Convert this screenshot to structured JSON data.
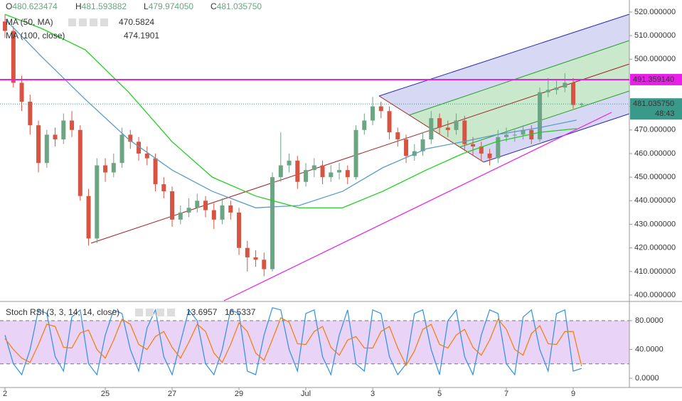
{
  "chart_data": {
    "type": "candlestick",
    "ohlc_prefixes": [
      "O",
      "H",
      "L",
      "C"
    ],
    "last_labels": {
      "open": "480.623474",
      "high": "481.593882",
      "low": "479.974050",
      "close": "481.035750"
    },
    "countdown": "48:43",
    "up_color": "#6ba583",
    "down_color": "#d75442",
    "x": [
      0,
      0.25,
      0.5,
      0.75,
      1,
      1.25,
      1.5,
      1.75,
      2,
      2.25,
      2.5,
      2.75,
      3,
      3.25,
      3.5,
      3.75,
      4,
      4.25,
      4.5,
      4.75,
      5,
      5.25,
      5.5,
      5.75,
      6,
      6.25,
      6.5,
      6.75,
      7,
      7.25,
      7.5,
      7.75,
      8,
      8.25,
      8.5,
      8.75,
      9,
      9.25,
      9.5,
      9.75,
      10,
      10.25,
      10.5,
      10.75,
      11,
      11.25,
      11.5,
      11.75,
      12,
      12.25,
      12.5,
      12.75,
      13,
      13.25,
      13.5,
      13.75,
      14,
      14.25,
      14.5,
      14.75,
      15,
      15.25,
      15.5,
      15.75,
      16,
      16.25,
      16.5,
      16.75,
      17,
      17.25
    ],
    "open": [
      516,
      512,
      490,
      482,
      472,
      456,
      468,
      466,
      474,
      470,
      442,
      424,
      455,
      452,
      456,
      468,
      465,
      460,
      458,
      447,
      444,
      432,
      435,
      437,
      440,
      436,
      432,
      438,
      435,
      420,
      416,
      415,
      411,
      450,
      455,
      457,
      448,
      453,
      455,
      450,
      452,
      453,
      450,
      470,
      474,
      480,
      478,
      469,
      466,
      459,
      461,
      466,
      475,
      471,
      470,
      474,
      464,
      463,
      460,
      458,
      467,
      468,
      468,
      470,
      466,
      486,
      487,
      488,
      490,
      480.623474
    ],
    "high": [
      519,
      514,
      493,
      485,
      474,
      470,
      471,
      477,
      478,
      472,
      445,
      458,
      458,
      460,
      471,
      470,
      467,
      463,
      460,
      450,
      446,
      438,
      441,
      443,
      442,
      439,
      441,
      440,
      437,
      423,
      419,
      418,
      452,
      469,
      460,
      459,
      456,
      458,
      457,
      455,
      456,
      455,
      472,
      477,
      484,
      482,
      480,
      471,
      468,
      464,
      469,
      478,
      477,
      474,
      477,
      476,
      467,
      465,
      462,
      470,
      471,
      470,
      472,
      472,
      488,
      492,
      491,
      494,
      492,
      481.593882
    ],
    "low": [
      509,
      488,
      478,
      468,
      452,
      454,
      463,
      464,
      467,
      440,
      421,
      422,
      448,
      450,
      454,
      462,
      457,
      455,
      444,
      441,
      429,
      430,
      433,
      435,
      433,
      428,
      430,
      432,
      417,
      410,
      412,
      408,
      410,
      448,
      452,
      445,
      446,
      450,
      447,
      448,
      449,
      447,
      449,
      468,
      472,
      475,
      466,
      463,
      456,
      457,
      459,
      464,
      468,
      467,
      468,
      461,
      459,
      457,
      455,
      456,
      465,
      465,
      466,
      464,
      465,
      484,
      485,
      486,
      479,
      479.97405
    ],
    "close": [
      512,
      490,
      482,
      472,
      456,
      468,
      466,
      474,
      470,
      442,
      424,
      455,
      452,
      456,
      468,
      465,
      460,
      458,
      447,
      444,
      432,
      435,
      437,
      440,
      436,
      432,
      438,
      435,
      420,
      416,
      415,
      411,
      450,
      455,
      457,
      448,
      453,
      455,
      450,
      452,
      453,
      450,
      470,
      474,
      480,
      478,
      469,
      466,
      459,
      461,
      466,
      475,
      471,
      470,
      474,
      464,
      463,
      460,
      458,
      467,
      468,
      468,
      470,
      466,
      486,
      487,
      488,
      490,
      480.623474,
      481.03575
    ],
    "ylim": [
      397.6,
      525.1
    ],
    "xlim": [
      -0.15,
      18.68
    ],
    "yticks": [
      {
        "value": 400,
        "label": "400.000000"
      },
      {
        "value": 410,
        "label": "410.000000"
      },
      {
        "value": 420,
        "label": "420.000000"
      },
      {
        "value": 430,
        "label": "430.000000"
      },
      {
        "value": 440,
        "label": "440.000000"
      },
      {
        "value": 450,
        "label": "450.000000"
      },
      {
        "value": 460,
        "label": "460.000000"
      },
      {
        "value": 470,
        "label": "470.000000"
      },
      {
        "value": 480,
        "label": "480.000000"
      },
      {
        "value": 490,
        "label": "490.000000"
      },
      {
        "value": 500,
        "label": "500.000000"
      },
      {
        "value": 510,
        "label": "510.000000"
      },
      {
        "value": 520,
        "label": "520.000000"
      }
    ],
    "xticks": [
      {
        "value": 0,
        "label": "2"
      },
      {
        "value": 3,
        "label": "25"
      },
      {
        "value": 5,
        "label": "27"
      },
      {
        "value": 7,
        "label": "29"
      },
      {
        "value": 9,
        "label": "Jul"
      },
      {
        "value": 11,
        "label": "3"
      },
      {
        "value": 13,
        "label": "5"
      },
      {
        "value": 15,
        "label": "7"
      },
      {
        "value": 17,
        "label": "9"
      }
    ],
    "hline": {
      "value": 491.35914,
      "label": "491.359140",
      "color": "#e91ee9"
    },
    "indicators": [
      {
        "name": "MA (50, MA)",
        "color": "#20d020",
        "x": [
          0,
          1.1,
          2.4,
          3.7,
          5,
          6.2,
          7.5,
          8.8,
          10.1,
          11.3,
          12.6,
          13.7,
          14.7,
          16,
          17.1
        ],
        "values": [
          519,
          513,
          504,
          486,
          465,
          450,
          442,
          437,
          437,
          444,
          453,
          460,
          465,
          469,
          470.5824
        ]
      },
      {
        "name": "MA (100, close)",
        "color": "#5b9cc6",
        "x": [
          0,
          1.1,
          2.4,
          3.7,
          5,
          6.2,
          7.5,
          8.8,
          10.1,
          11.3,
          12.6,
          13.7,
          14.7,
          16,
          17.1
        ],
        "values": [
          517,
          501,
          483,
          466,
          453,
          444,
          437,
          438,
          444,
          454,
          462,
          465,
          468,
          471,
          474.1901
        ]
      }
    ],
    "stoch": {
      "name": "Stoch RSI (3, 3, 14, 14, close)",
      "ylim": [
        -12.8,
        105.7
      ],
      "yticks": [
        {
          "value": 0,
          "label": "0.0000"
        },
        {
          "value": 40,
          "label": "40.0000"
        },
        {
          "value": 80,
          "label": "80.0000"
        }
      ],
      "bands": [
        20,
        80
      ],
      "band_color": "#e3c8f5",
      "series": [
        {
          "color": "#2f8fe8",
          "values": [
            60,
            20,
            5,
            40,
            95,
            90,
            30,
            10,
            85,
            95,
            20,
            5,
            60,
            95,
            90,
            40,
            10,
            70,
            95,
            30,
            5,
            50,
            95,
            80,
            20,
            5,
            40,
            95,
            90,
            10,
            5,
            60,
            98,
            95,
            40,
            10,
            90,
            95,
            30,
            5,
            60,
            95,
            20,
            10,
            95,
            90,
            30,
            5,
            20,
            90,
            95,
            40,
            5,
            80,
            95,
            30,
            5,
            60,
            95,
            90,
            20,
            5,
            85,
            95,
            40,
            10,
            90,
            95,
            10,
            13.6957
          ]
        },
        {
          "color": "#f57c00",
          "values": [
            55,
            40,
            28,
            22,
            47,
            75,
            72,
            43,
            42,
            63,
            67,
            40,
            28,
            53,
            82,
            75,
            47,
            40,
            58,
            65,
            43,
            28,
            50,
            75,
            65,
            35,
            22,
            47,
            77,
            65,
            35,
            25,
            54,
            84,
            78,
            48,
            47,
            65,
            72,
            43,
            32,
            53,
            58,
            42,
            42,
            65,
            72,
            42,
            18,
            38,
            68,
            75,
            47,
            42,
            60,
            68,
            43,
            32,
            53,
            82,
            68,
            40,
            32,
            62,
            73,
            48,
            47,
            65,
            65,
            16.5337
          ]
        }
      ]
    }
  }
}
